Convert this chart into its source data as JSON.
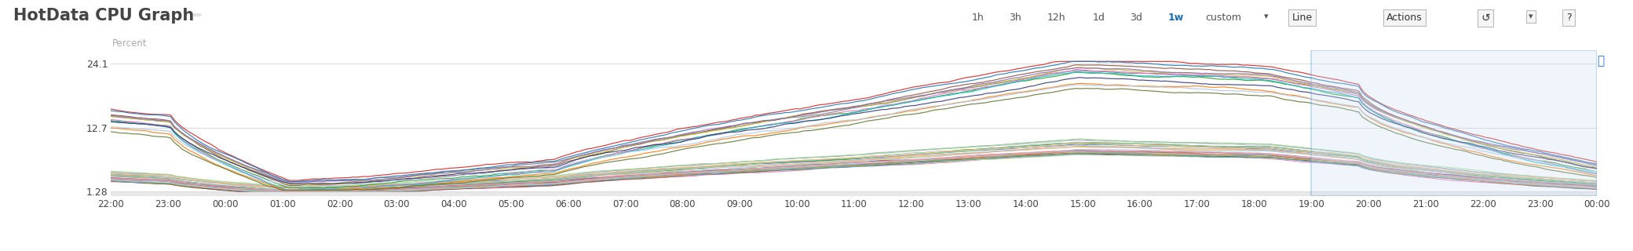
{
  "title": "HotData CPU Graph",
  "ylabel": "Percent",
  "yticks": [
    1.28,
    12.7,
    24.1
  ],
  "ylim": [
    0.5,
    26.5
  ],
  "xlabel_times": [
    "22:00",
    "23:00",
    "00:00",
    "01:00",
    "02:00",
    "03:00",
    "04:00",
    "05:00",
    "06:00",
    "07:00",
    "08:00",
    "09:00",
    "10:00",
    "11:00",
    "12:00",
    "13:00",
    "14:00",
    "15:00",
    "16:00",
    "17:00",
    "18:00",
    "19:00",
    "20:00",
    "21:00",
    "22:00",
    "23:00",
    "00:00"
  ],
  "bg_color": "#ffffff",
  "plot_bg_color": "#ffffff",
  "grid_color": "#dddddd",
  "active_toolbar": "1w",
  "line_colors_upper": [
    "#2ca02c",
    "#d62728",
    "#7f7f7f",
    "#8c564b",
    "#bcbd22",
    "#1f77b4",
    "#9467bd",
    "#e377c2",
    "#17becf",
    "#ff7f0e",
    "#aec7e8",
    "#393b79",
    "#637939"
  ],
  "line_colors_lower": [
    "#bcbd22",
    "#2ca02c",
    "#e377c2",
    "#c49c94",
    "#f7b6d2",
    "#c7c7c7",
    "#dbdb8d",
    "#9edae5",
    "#8c6d31",
    "#843c39",
    "#7b4173",
    "#3182bd",
    "#e6550d",
    "#31a354",
    "#756bb1",
    "#636363",
    "#6baed6",
    "#fd8d3c",
    "#74c476",
    "#9e9ac8",
    "#969696",
    "#9ecae1",
    "#fdae6b",
    "#a1d99b",
    "#bcbddc",
    "#bdbdbd",
    "#ff9896",
    "#98df8a",
    "#ffbb78",
    "#c5b0d5"
  ],
  "n_points": 400,
  "peak_upper": 22.0,
  "peak_lower": 8.5,
  "base_value": 1.28
}
